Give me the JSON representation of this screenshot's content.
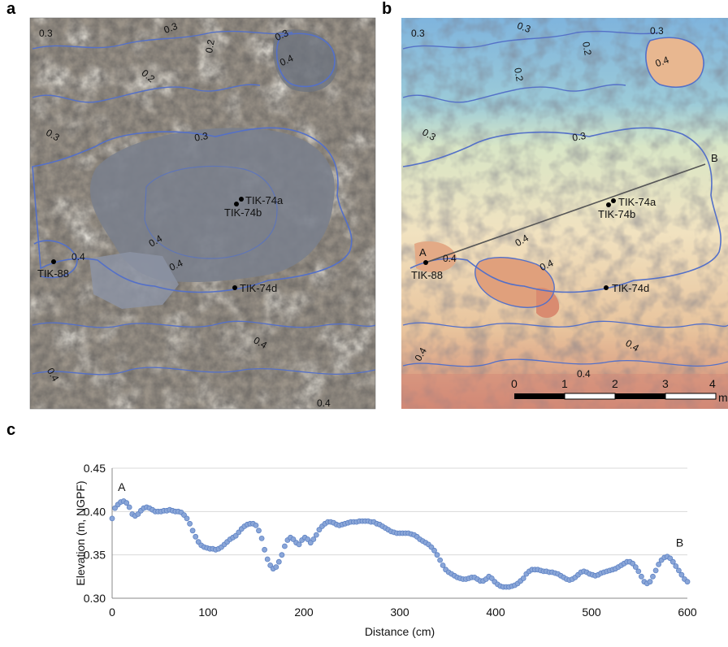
{
  "panels": {
    "a": "a",
    "b": "b",
    "c": "c"
  },
  "colors": {
    "contour": "#5470c8",
    "photo_bg": "#9a9287",
    "crust": "#757c88",
    "points": "#8aa6d8",
    "point_edge": "#5f83c4",
    "grid": "#d9d9d9"
  },
  "panel_a": {
    "contours": [
      "0.3",
      "0.3",
      "0.2",
      "0.3",
      "0.4",
      "0.2",
      "0.3",
      "0.3",
      "0.4",
      "0.4",
      "0.4",
      "0.4",
      "0.4",
      "0.4"
    ],
    "samples": [
      "TIK-74a",
      "TIK-74b",
      "TIK-88",
      "TIK-74d"
    ]
  },
  "panel_b": {
    "contours": [
      "0.3",
      "0.3",
      "0.2",
      "0.2",
      "0.3",
      "0.4",
      "0.3",
      "0.3",
      "0.4",
      "0.4",
      "0.4",
      "0.4",
      "0.4",
      "0.4"
    ],
    "samples": [
      "TIK-74a",
      "TIK-74b",
      "TIK-88",
      "TIK-74d"
    ],
    "profile_start": "A",
    "profile_end": "B",
    "scale_ticks": [
      "0",
      "1",
      "2",
      "3",
      "4"
    ],
    "scale_unit": "m"
  },
  "chart_data": {
    "type": "scatter",
    "title": "",
    "xlabel": "Distance (cm)",
    "ylabel": "Elevation (m, NGPF)",
    "xlim": [
      0,
      600
    ],
    "ylim": [
      0.3,
      0.45
    ],
    "x_ticks": [
      "0",
      "100",
      "200",
      "300",
      "400",
      "500",
      "600"
    ],
    "y_ticks": [
      "0.30",
      "0.35",
      "0.40",
      "0.45"
    ],
    "grid": "horizontal",
    "annotations": [
      {
        "text": "A",
        "x": 10,
        "y": 0.418
      },
      {
        "text": "B",
        "x": 592,
        "y": 0.354
      }
    ],
    "series": [
      {
        "x": [
          0,
          3,
          6,
          9,
          12,
          15,
          18,
          21,
          24,
          27,
          30,
          33,
          36,
          39,
          42,
          45,
          48,
          51,
          54,
          57,
          60,
          63,
          66,
          69,
          72,
          75,
          78,
          81,
          84,
          87,
          90,
          93,
          96,
          99,
          102,
          105,
          108,
          111,
          114,
          117,
          120,
          123,
          126,
          129,
          132,
          135,
          138,
          141,
          144,
          147,
          150,
          153,
          156,
          159,
          162,
          165,
          168,
          171,
          174,
          177,
          180,
          183,
          186,
          189,
          192,
          195,
          198,
          201,
          204,
          207,
          210,
          213,
          216,
          219,
          222,
          225,
          228,
          231,
          234,
          237,
          240,
          243,
          246,
          249,
          252,
          255,
          258,
          261,
          264,
          267,
          270,
          273,
          276,
          279,
          282,
          285,
          288,
          291,
          294,
          297,
          300,
          303,
          306,
          309,
          312,
          315,
          318,
          321,
          324,
          327,
          330,
          333,
          336,
          339,
          342,
          345,
          348,
          351,
          354,
          357,
          360,
          363,
          366,
          369,
          372,
          375,
          378,
          381,
          384,
          387,
          390,
          393,
          396,
          399,
          402,
          405,
          408,
          411,
          414,
          417,
          420,
          423,
          426,
          429,
          432,
          435,
          438,
          441,
          444,
          447,
          450,
          453,
          456,
          459,
          462,
          465,
          468,
          471,
          474,
          477,
          480,
          483,
          486,
          489,
          492,
          495,
          498,
          501,
          504,
          507,
          510,
          513,
          516,
          519,
          522,
          525,
          528,
          531,
          534,
          537,
          540,
          543,
          546,
          549,
          552,
          555,
          558,
          561,
          564,
          567,
          570,
          573,
          576,
          579,
          582,
          585,
          588,
          591,
          594,
          597,
          600
        ],
        "y": [
          0.392,
          0.404,
          0.408,
          0.411,
          0.412,
          0.41,
          0.405,
          0.397,
          0.395,
          0.397,
          0.401,
          0.404,
          0.405,
          0.404,
          0.402,
          0.4,
          0.4,
          0.4,
          0.401,
          0.401,
          0.402,
          0.401,
          0.4,
          0.4,
          0.399,
          0.396,
          0.392,
          0.386,
          0.378,
          0.371,
          0.365,
          0.361,
          0.359,
          0.358,
          0.357,
          0.357,
          0.356,
          0.357,
          0.359,
          0.362,
          0.365,
          0.368,
          0.37,
          0.372,
          0.376,
          0.38,
          0.383,
          0.385,
          0.386,
          0.386,
          0.384,
          0.378,
          0.369,
          0.356,
          0.345,
          0.338,
          0.334,
          0.336,
          0.342,
          0.35,
          0.36,
          0.367,
          0.37,
          0.368,
          0.364,
          0.362,
          0.367,
          0.37,
          0.368,
          0.364,
          0.368,
          0.373,
          0.379,
          0.383,
          0.386,
          0.388,
          0.388,
          0.387,
          0.385,
          0.384,
          0.385,
          0.386,
          0.387,
          0.388,
          0.388,
          0.388,
          0.389,
          0.389,
          0.389,
          0.389,
          0.388,
          0.388,
          0.386,
          0.385,
          0.383,
          0.381,
          0.379,
          0.377,
          0.376,
          0.375,
          0.375,
          0.375,
          0.375,
          0.375,
          0.374,
          0.373,
          0.371,
          0.368,
          0.366,
          0.364,
          0.362,
          0.359,
          0.355,
          0.35,
          0.344,
          0.338,
          0.333,
          0.33,
          0.328,
          0.326,
          0.324,
          0.323,
          0.322,
          0.322,
          0.323,
          0.324,
          0.324,
          0.322,
          0.32,
          0.32,
          0.322,
          0.325,
          0.323,
          0.319,
          0.316,
          0.314,
          0.313,
          0.313,
          0.313,
          0.314,
          0.315,
          0.317,
          0.32,
          0.323,
          0.328,
          0.331,
          0.333,
          0.333,
          0.333,
          0.332,
          0.331,
          0.331,
          0.33,
          0.33,
          0.329,
          0.328,
          0.326,
          0.324,
          0.322,
          0.321,
          0.322,
          0.324,
          0.327,
          0.33,
          0.331,
          0.33,
          0.328,
          0.327,
          0.326,
          0.327,
          0.329,
          0.33,
          0.331,
          0.332,
          0.333,
          0.334,
          0.336,
          0.338,
          0.34,
          0.342,
          0.342,
          0.34,
          0.336,
          0.331,
          0.325,
          0.319,
          0.317,
          0.319,
          0.325,
          0.332,
          0.339,
          0.344,
          0.347,
          0.348,
          0.346,
          0.342,
          0.337,
          0.332,
          0.327,
          0.322,
          0.319
        ]
      }
    ]
  }
}
